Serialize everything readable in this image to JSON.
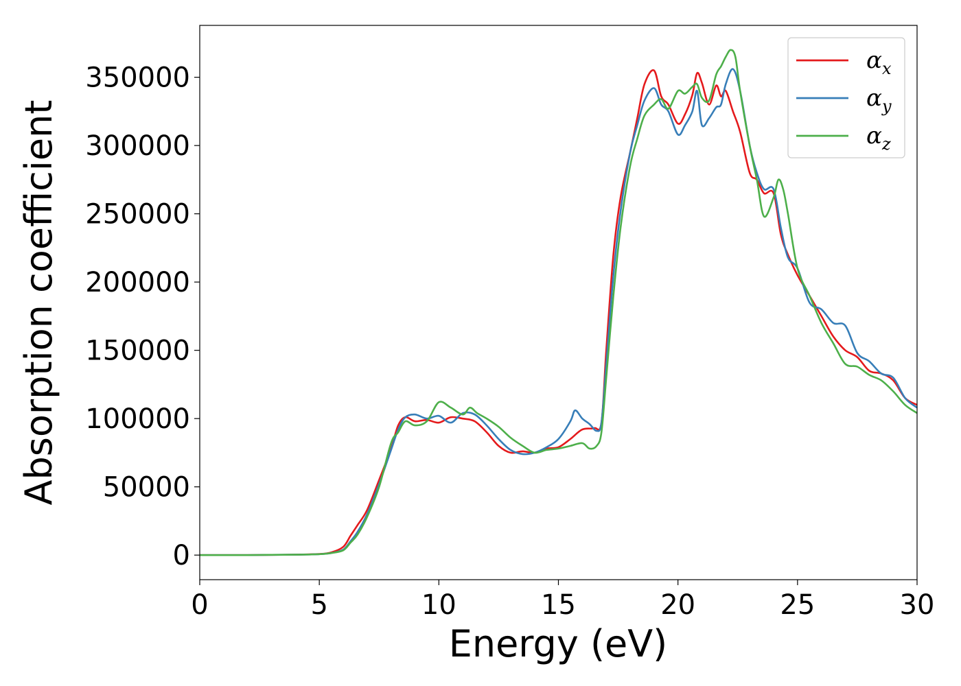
{
  "chart_data": {
    "type": "line",
    "title": "",
    "xlabel": "Energy (eV)",
    "ylabel": "Absorption coefficient",
    "xlim": [
      0,
      30
    ],
    "ylim": [
      -18000,
      388000
    ],
    "xticks": [
      "0",
      "5",
      "10",
      "15",
      "20",
      "25",
      "30"
    ],
    "yticks": [
      "0",
      "50000",
      "100000",
      "150000",
      "200000",
      "250000",
      "300000",
      "350000"
    ],
    "grid": false,
    "legend_position": "top-right",
    "legend_symbol": "α",
    "series": [
      {
        "name": "x",
        "color": "#e41a1c",
        "x": [
          0,
          1,
          2,
          3,
          4,
          5,
          5.5,
          6,
          6.3,
          6.6,
          7,
          7.5,
          8,
          8.3,
          8.6,
          9,
          9.5,
          10,
          10.5,
          11,
          11.5,
          12,
          12.5,
          13,
          13.5,
          14,
          14.5,
          15,
          15.5,
          16,
          16.5,
          16.8,
          17,
          17.3,
          17.6,
          18,
          18.3,
          18.6,
          19,
          19.3,
          19.6,
          20,
          20.3,
          20.6,
          20.8,
          21,
          21.3,
          21.6,
          21.8,
          22,
          22.3,
          22.6,
          23,
          23.3,
          23.6,
          24,
          24.3,
          24.6,
          25,
          25.5,
          26,
          26.5,
          27,
          27.5,
          28,
          28.5,
          29,
          29.5,
          30
        ],
        "y": [
          0,
          0,
          0,
          200,
          300,
          800,
          2000,
          6000,
          14000,
          22000,
          33000,
          55000,
          78000,
          95000,
          101000,
          98000,
          99000,
          97000,
          101000,
          100000,
          98000,
          90000,
          80000,
          75000,
          76000,
          75000,
          78000,
          79000,
          85000,
          92000,
          93000,
          97000,
          150000,
          220000,
          262000,
          295000,
          320000,
          345000,
          355000,
          336000,
          330000,
          316000,
          323000,
          337000,
          353000,
          346000,
          330000,
          344000,
          336000,
          340000,
          325000,
          310000,
          280000,
          275000,
          265000,
          265000,
          235000,
          220000,
          205000,
          190000,
          175000,
          160000,
          150000,
          145000,
          135000,
          133000,
          128000,
          115000,
          110000
        ]
      },
      {
        "name": "y",
        "color": "#377eb8",
        "x": [
          0,
          1,
          2,
          3,
          4,
          5,
          5.5,
          6,
          6.3,
          6.6,
          7,
          7.5,
          8,
          8.3,
          8.6,
          9,
          9.5,
          10,
          10.5,
          11,
          11.5,
          12,
          12.5,
          13,
          13.5,
          14,
          14.5,
          15,
          15.5,
          15.7,
          16,
          16.3,
          16.6,
          16.8,
          17,
          17.3,
          17.6,
          18,
          18.3,
          18.6,
          19,
          19.3,
          19.6,
          20,
          20.3,
          20.6,
          20.8,
          21,
          21.3,
          21.6,
          21.8,
          22,
          22.3,
          22.6,
          23,
          23.3,
          23.6,
          24,
          24.3,
          24.6,
          25,
          25.5,
          26,
          26.5,
          27,
          27.5,
          28,
          28.5,
          29,
          29.5,
          30
        ],
        "y": [
          0,
          0,
          0,
          200,
          300,
          700,
          1500,
          4000,
          10000,
          17000,
          30000,
          52000,
          77000,
          92000,
          101000,
          103000,
          100000,
          102000,
          97000,
          104000,
          103000,
          95000,
          85000,
          77000,
          74000,
          75000,
          79000,
          85000,
          98000,
          106000,
          100000,
          96000,
          91000,
          97000,
          140000,
          205000,
          252000,
          295000,
          315000,
          333000,
          342000,
          330000,
          325000,
          308000,
          315000,
          325000,
          340000,
          315000,
          320000,
          328000,
          330000,
          345000,
          356000,
          340000,
          300000,
          280000,
          268000,
          268000,
          240000,
          218000,
          210000,
          185000,
          180000,
          170000,
          168000,
          148000,
          142000,
          133000,
          130000,
          115000,
          108000
        ]
      },
      {
        "name": "z",
        "color": "#4daf4a",
        "x": [
          0,
          1,
          2,
          3,
          4,
          5,
          5.5,
          6,
          6.3,
          6.6,
          7,
          7.5,
          8,
          8.3,
          8.6,
          9,
          9.5,
          10,
          10.5,
          11,
          11.3,
          11.6,
          12,
          12.5,
          13,
          13.5,
          14,
          14.5,
          15,
          15.5,
          16,
          16.3,
          16.6,
          16.8,
          17,
          17.3,
          17.6,
          18,
          18.3,
          18.6,
          19,
          19.3,
          19.6,
          20,
          20.3,
          20.6,
          20.8,
          21,
          21.3,
          21.6,
          21.8,
          22,
          22.2,
          22.4,
          22.6,
          23,
          23.3,
          23.6,
          24,
          24.2,
          24.4,
          24.6,
          25,
          25.5,
          26,
          26.5,
          27,
          27.5,
          28,
          28.5,
          29,
          29.5,
          30
        ],
        "y": [
          0,
          0,
          0,
          200,
          300,
          700,
          1500,
          3500,
          9000,
          15000,
          28000,
          50000,
          82000,
          90000,
          98000,
          95000,
          98000,
          112000,
          108000,
          103000,
          108000,
          104000,
          100000,
          94000,
          86000,
          80000,
          75000,
          77000,
          78000,
          80000,
          82000,
          78000,
          80000,
          90000,
          130000,
          190000,
          240000,
          285000,
          305000,
          322000,
          330000,
          334000,
          327000,
          340000,
          338000,
          343000,
          345000,
          335000,
          333000,
          352000,
          358000,
          365000,
          370000,
          365000,
          340000,
          300000,
          275000,
          248000,
          262000,
          275000,
          268000,
          250000,
          210000,
          190000,
          170000,
          155000,
          140000,
          138000,
          132000,
          128000,
          120000,
          110000,
          104000
        ]
      }
    ]
  }
}
